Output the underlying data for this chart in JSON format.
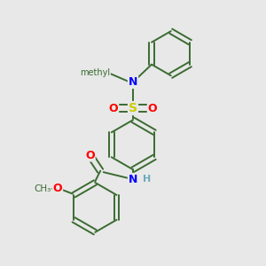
{
  "background_color": "#e8e8e8",
  "bond_color": "#3a6b30",
  "atom_colors": {
    "N": "#0000ff",
    "O": "#ff0000",
    "S": "#cccc00",
    "H": "#6aabbb",
    "C": "#3a6b30"
  },
  "figsize": [
    3.0,
    3.0
  ],
  "dpi": 100
}
